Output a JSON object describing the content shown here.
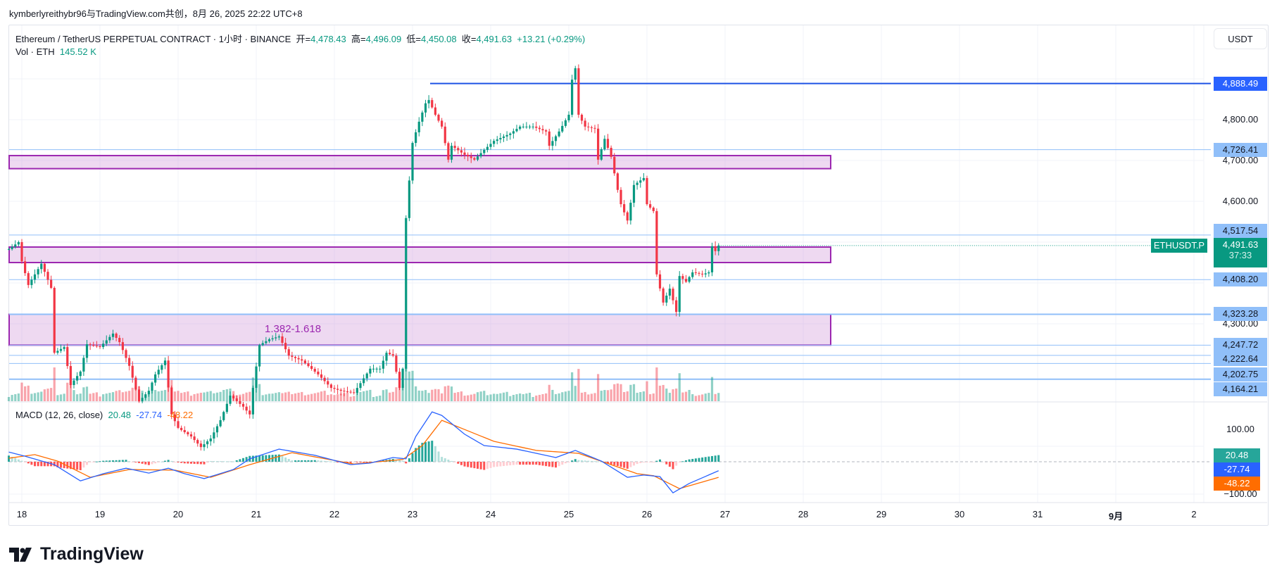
{
  "header": {
    "attribution": "kymberlyreithybr96与TradingView.com共创，8月 26, 2025 22:22 UTC+8"
  },
  "legend": {
    "symbol": "Ethereum / TetherUS PERPETUAL CONTRACT · 1小时 · BINANCE",
    "open_label": "开=",
    "open": "4,478.43",
    "high_label": "高=",
    "high": "4,496.09",
    "low_label": "低=",
    "low": "4,450.08",
    "close_label": "收=",
    "close": "4,491.63",
    "change": "+13.21 (+0.29%)",
    "vol_label": "Vol · ETH",
    "vol": "145.52 K"
  },
  "currency_button": "USDT",
  "symbol_tag": "ETHUSDT.P",
  "countdown": "37:33",
  "fib_label": "1.382-1.618",
  "macd": {
    "label": "MACD (12, 26, close)",
    "hist": "20.48",
    "macd": "-27.74",
    "signal": "-48.22",
    "tick_top": "100.00",
    "tick_bottom": "−100.00"
  },
  "logo": "TradingView",
  "colors": {
    "up": "#089981",
    "down": "#f23645",
    "macd": "#2962ff",
    "signal": "#ff6d00",
    "zone": "#9c27b0",
    "level": "#90bff9",
    "high_line": "#1e53e5"
  },
  "chart_data": {
    "type": "candlestick",
    "timeframe": "1小时",
    "x_ticks": [
      "18",
      "19",
      "20",
      "21",
      "22",
      "23",
      "24",
      "25",
      "26",
      "27",
      "28",
      "29",
      "30",
      "31",
      "9月",
      "2"
    ],
    "y_ticks": [
      "4,800.00",
      "4,700.00",
      "4,600.00",
      "4,300.00"
    ],
    "price_levels": [
      "4,888.49",
      "4,726.41",
      "4,517.54",
      "4,408.20",
      "4,323.28",
      "4,247.72",
      "4,222.64",
      "4,202.75",
      "4,164.21"
    ],
    "last_price": "4,491.63",
    "zones": [
      [
        4680,
        4712
      ],
      [
        4450,
        4488
      ],
      [
        4247.72,
        4323.28
      ]
    ],
    "close_path": [
      [
        "08-17 20:00",
        4483
      ],
      [
        "08-17 23:00",
        4500
      ],
      [
        "08-18 00:00",
        4453
      ],
      [
        "08-18 02:00",
        4395
      ],
      [
        "08-18 06:00",
        4447
      ],
      [
        "08-18 09:00",
        4388
      ],
      [
        "08-18 10:00",
        4229
      ],
      [
        "08-18 13:00",
        4243
      ],
      [
        "08-18 15:00",
        4150
      ],
      [
        "08-18 18:00",
        4183
      ],
      [
        "08-18 20:00",
        4250
      ],
      [
        "08-19 00:00",
        4243
      ],
      [
        "08-19 04:00",
        4276
      ],
      [
        "08-19 06:00",
        4255
      ],
      [
        "08-19 09:00",
        4197
      ],
      [
        "08-19 12:00",
        4110
      ],
      [
        "08-19 15:00",
        4136
      ],
      [
        "08-19 17:00",
        4176
      ],
      [
        "08-19 20:00",
        4210
      ],
      [
        "08-19 22:00",
        4078
      ],
      [
        "08-20 00:00",
        4045
      ],
      [
        "08-20 04:00",
        4024
      ],
      [
        "08-20 07:00",
        3998
      ],
      [
        "08-20 10:00",
        4019
      ],
      [
        "08-20 13:00",
        4064
      ],
      [
        "08-20 16:00",
        4124
      ],
      [
        "08-20 20:00",
        4097
      ],
      [
        "08-20 22:00",
        4078
      ],
      [
        "08-20 23:00",
        4143
      ],
      [
        "08-21 01:00",
        4248
      ],
      [
        "08-21 04:00",
        4262
      ],
      [
        "08-21 07:00",
        4269
      ],
      [
        "08-21 10:00",
        4222
      ],
      [
        "08-21 14:00",
        4210
      ],
      [
        "08-21 19:00",
        4176
      ],
      [
        "08-21 23:00",
        4143
      ],
      [
        "08-22 02:00",
        4136
      ],
      [
        "08-22 06:00",
        4131
      ],
      [
        "08-22 11:00",
        4190
      ],
      [
        "08-22 14:00",
        4190
      ],
      [
        "08-22 16:00",
        4229
      ],
      [
        "08-22 18:00",
        4222
      ],
      [
        "08-22 20:00",
        4143
      ],
      [
        "08-22 21:00",
        4190
      ],
      [
        "08-22 22:00",
        4559
      ],
      [
        "08-23 00:00",
        4743
      ],
      [
        "08-23 02:00",
        4795
      ],
      [
        "08-23 04:00",
        4840
      ],
      [
        "08-23 05:00",
        4848
      ],
      [
        "08-23 07:00",
        4812
      ],
      [
        "08-23 09:00",
        4783
      ],
      [
        "08-23 11:00",
        4702
      ],
      [
        "08-23 12:00",
        4736
      ],
      [
        "08-23 16:00",
        4714
      ],
      [
        "08-23 19:00",
        4702
      ],
      [
        "08-23 22:00",
        4726
      ],
      [
        "08-24 01:00",
        4748
      ],
      [
        "08-24 06:00",
        4766
      ],
      [
        "08-24 09:00",
        4783
      ],
      [
        "08-24 13:00",
        4783
      ],
      [
        "08-24 17:00",
        4771
      ],
      [
        "08-24 18:00",
        4736
      ],
      [
        "08-24 21:00",
        4771
      ],
      [
        "08-25 00:00",
        4812
      ],
      [
        "08-25 01:00",
        4898
      ],
      [
        "08-25 02:00",
        4926
      ],
      [
        "08-25 03:00",
        4812
      ],
      [
        "08-25 05:00",
        4783
      ],
      [
        "08-25 08:00",
        4778
      ],
      [
        "08-25 09:00",
        4702
      ],
      [
        "08-25 11:00",
        4753
      ],
      [
        "08-25 13:00",
        4709
      ],
      [
        "08-25 15:00",
        4628
      ],
      [
        "08-25 16:00",
        4593
      ],
      [
        "08-25 18:00",
        4553
      ],
      [
        "08-25 20:00",
        4640
      ],
      [
        "08-25 23:00",
        4657
      ],
      [
        "08-26 00:00",
        4593
      ],
      [
        "08-26 02:00",
        4576
      ],
      [
        "08-26 03:00",
        4421
      ],
      [
        "08-26 05:00",
        4352
      ],
      [
        "08-26 07:00",
        4386
      ],
      [
        "08-26 09:00",
        4329
      ],
      [
        "08-26 10:00",
        4417
      ],
      [
        "08-26 12:00",
        4403
      ],
      [
        "08-26 14:00",
        4426
      ],
      [
        "08-26 17:00",
        4421
      ],
      [
        "08-26 19:00",
        4426
      ],
      [
        "08-26 20:00",
        4490
      ],
      [
        "08-26 21:00",
        4478
      ],
      [
        "08-26 22:00",
        4491.63
      ]
    ],
    "macd_path": [
      [
        "08-17 20:00",
        30
      ],
      [
        "08-18 01:00",
        17
      ],
      [
        "08-18 10:00",
        -9
      ],
      [
        "08-18 18:00",
        -59
      ],
      [
        "08-19 01:00",
        -37
      ],
      [
        "08-19 08:00",
        -20
      ],
      [
        "08-19 15:00",
        -35
      ],
      [
        "08-19 21:00",
        -20
      ],
      [
        "08-20 02:00",
        -37
      ],
      [
        "08-20 08:00",
        -52
      ],
      [
        "08-20 17:00",
        -24
      ],
      [
        "08-20 22:00",
        9
      ],
      [
        "08-21 07:00",
        39
      ],
      [
        "08-21 18:00",
        20
      ],
      [
        "08-22 05:00",
        -9
      ],
      [
        "08-22 11:00",
        -4
      ],
      [
        "08-22 18:00",
        13
      ],
      [
        "08-22 22:00",
        9
      ],
      [
        "08-23 01:00",
        78
      ],
      [
        "08-23 06:00",
        154
      ],
      [
        "08-23 09:00",
        143
      ],
      [
        "08-23 16:00",
        85
      ],
      [
        "08-23 22:00",
        50
      ],
      [
        "08-24 08:00",
        39
      ],
      [
        "08-24 20:00",
        13
      ],
      [
        "08-25 02:00",
        35
      ],
      [
        "08-25 10:00",
        2
      ],
      [
        "08-25 18:00",
        -48
      ],
      [
        "08-25 23:00",
        -41
      ],
      [
        "08-26 04:00",
        -46
      ],
      [
        "08-26 08:00",
        -96
      ],
      [
        "08-26 13:00",
        -67
      ],
      [
        "08-26 22:00",
        -27.74
      ]
    ],
    "signal_path": [
      [
        "08-17 20:00",
        11
      ],
      [
        "08-18 04:00",
        22
      ],
      [
        "08-18 11:00",
        2
      ],
      [
        "08-18 21:00",
        -48
      ],
      [
        "08-19 09:00",
        -24
      ],
      [
        "08-19 23:00",
        -26
      ],
      [
        "08-20 10:00",
        -48
      ],
      [
        "08-20 22:00",
        -9
      ],
      [
        "08-21 11:00",
        28
      ],
      [
        "08-22 06:00",
        -7
      ],
      [
        "08-22 21:00",
        7
      ],
      [
        "08-23 03:00",
        50
      ],
      [
        "08-23 09:00",
        128
      ],
      [
        "08-24 01:00",
        63
      ],
      [
        "08-24 14:00",
        35
      ],
      [
        "08-25 03:00",
        26
      ],
      [
        "08-25 21:00",
        -37
      ],
      [
        "08-26 02:00",
        -43
      ],
      [
        "08-26 10:00",
        -83
      ],
      [
        "08-26 22:00",
        -48.22
      ]
    ],
    "macd_ylim": [
      -100,
      100
    ],
    "grid": true
  }
}
